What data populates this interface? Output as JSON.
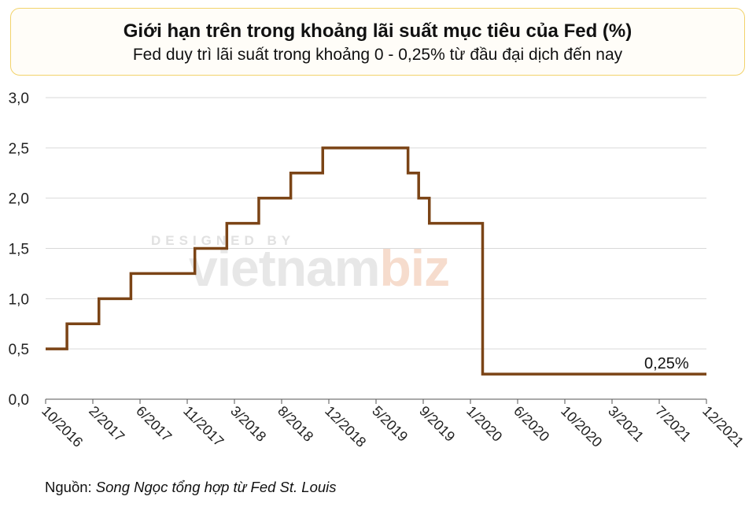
{
  "title": "Giới hạn trên trong khoảng lãi suất mục tiêu của Fed (%)",
  "subtitle": "Fed duy trì lãi suất trong khoảng 0 - 0,25% từ đầu đại dịch đến nay",
  "source": {
    "prefix": "Nguồn:",
    "text": "Song Ngọc tổng hợp từ Fed St. Louis"
  },
  "watermark": {
    "top": "DESIGNED BY",
    "main_a": "vietnam",
    "main_b": "biz"
  },
  "colors": {
    "line": "#7b4416",
    "grid": "#d9d9d9",
    "axis": "#555555",
    "title_border": "#f2d36b",
    "watermark_accent": "#f4c9b2"
  },
  "chart_data": {
    "type": "line",
    "title": "Giới hạn trên trong khoảng lãi suất mục tiêu của Fed (%)",
    "subtitle": "Fed duy trì lãi suất trong khoảng 0 - 0,25% từ đầu đại dịch đến nay",
    "xlabel": "",
    "ylabel": "",
    "ylim": [
      0,
      3
    ],
    "y_ticks": [
      "0,0",
      "0,5",
      "1,0",
      "1,5",
      "2,0",
      "2,5",
      "3,0"
    ],
    "x_ticks": [
      "10/2016",
      "2/2017",
      "6/2017",
      "11/2017",
      "3/2018",
      "8/2018",
      "12/2018",
      "5/2019",
      "9/2019",
      "1/2020",
      "6/2020",
      "10/2020",
      "3/2021",
      "7/2021",
      "12/2021"
    ],
    "x_range": [
      "2016-10",
      "2021-12"
    ],
    "grid": "horizontal",
    "step": true,
    "series": [
      {
        "name": "",
        "points": [
          [
            "2016-10",
            0.5
          ],
          [
            "2016-12",
            0.75
          ],
          [
            "2017-03",
            1.0
          ],
          [
            "2017-06",
            1.25
          ],
          [
            "2017-12",
            1.5
          ],
          [
            "2018-03",
            1.75
          ],
          [
            "2018-06",
            2.0
          ],
          [
            "2018-09",
            2.25
          ],
          [
            "2018-12",
            2.5
          ],
          [
            "2019-08",
            2.25
          ],
          [
            "2019-09",
            2.0
          ],
          [
            "2019-10",
            1.75
          ],
          [
            "2020-03",
            1.25
          ],
          [
            "2020-03",
            0.25
          ],
          [
            "2021-12",
            0.25
          ]
        ]
      }
    ],
    "annotations": [
      {
        "text": "0,25%",
        "x": "2021-09",
        "y": 0.25
      }
    ]
  }
}
